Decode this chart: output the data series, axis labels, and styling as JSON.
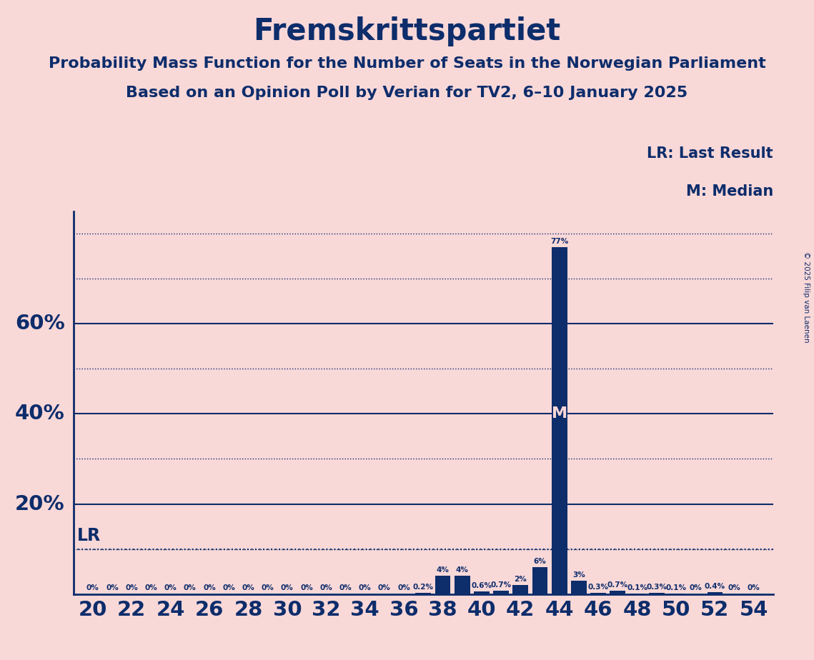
{
  "title": "Fremskrittspartiet",
  "subtitle1": "Probability Mass Function for the Number of Seats in the Norwegian Parliament",
  "subtitle2": "Based on an Opinion Poll by Verian for TV2, 6–10 January 2025",
  "copyright": "© 2025 Filip van Laenen",
  "seats": [
    20,
    21,
    22,
    23,
    24,
    25,
    26,
    27,
    28,
    29,
    30,
    31,
    32,
    33,
    34,
    35,
    36,
    37,
    38,
    39,
    40,
    41,
    42,
    43,
    44,
    45,
    46,
    47,
    48,
    49,
    50,
    51,
    52,
    53,
    54
  ],
  "probabilities": [
    0,
    0,
    0,
    0,
    0,
    0,
    0,
    0,
    0,
    0,
    0,
    0,
    0,
    0,
    0,
    0,
    0,
    0.2,
    4,
    4,
    0.6,
    0.7,
    2,
    6,
    77,
    3,
    0.3,
    0.7,
    0.1,
    0.3,
    0.1,
    0,
    0.4,
    0,
    0
  ],
  "bar_color": "#0d2d6b",
  "background_color": "#f9d8d8",
  "text_color": "#0d2d6b",
  "lr_y": 10,
  "lr_label": "LR",
  "median_seat": 44,
  "median_label": "M",
  "median_y": 40,
  "xlim": [
    19.0,
    55.0
  ],
  "ylim": [
    0,
    85
  ],
  "solid_yticks": [
    20,
    40,
    60
  ],
  "dotted_yticks": [
    10,
    30,
    50,
    70,
    80
  ],
  "bar_width": 0.8,
  "bar_label_fontsize": 7.5,
  "title_fontsize": 30,
  "subtitle_fontsize": 16,
  "axis_tick_fontsize": 21,
  "lr_fontsize": 17,
  "median_fontsize": 16,
  "legend_fontsize": 15,
  "ytick_fontsize": 21
}
